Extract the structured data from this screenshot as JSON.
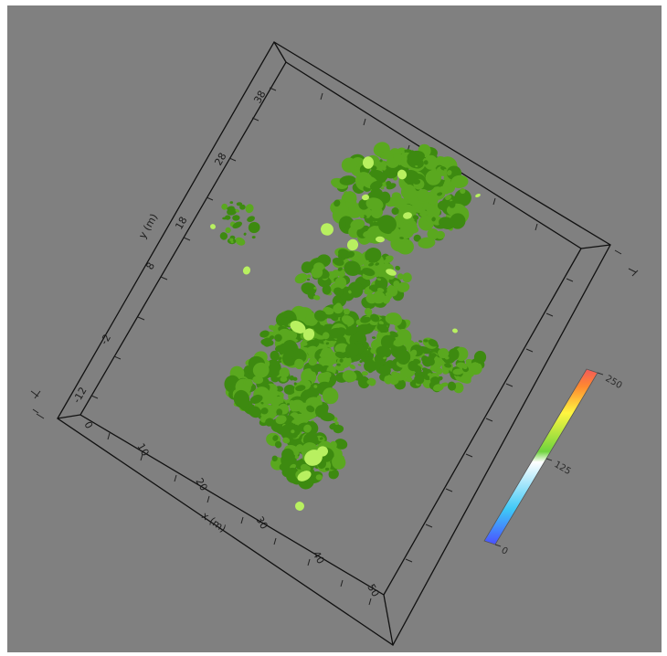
{
  "viewer": {
    "background_color": "#808080",
    "frame_color": "#111111",
    "isosurface_dark_color": "#3d8a10",
    "isosurface_mid_color": "#5aa81f",
    "isosurface_light_color": "#b8f060"
  },
  "axes": {
    "x": {
      "title": "x (m)",
      "ticks": [
        "0",
        "10",
        "20",
        "30",
        "40",
        "50"
      ]
    },
    "y": {
      "title": "y (m)",
      "ticks": [
        "-12",
        "-2",
        "8",
        "18",
        "28",
        "38"
      ]
    }
  },
  "colorbar": {
    "labels": [
      "0",
      "125",
      "250"
    ],
    "colors": [
      "#4a50ff",
      "#3ec9f7",
      "#ffffff",
      "#6fd43e",
      "#fff640",
      "#ff8a30",
      "#f25a5a"
    ]
  }
}
